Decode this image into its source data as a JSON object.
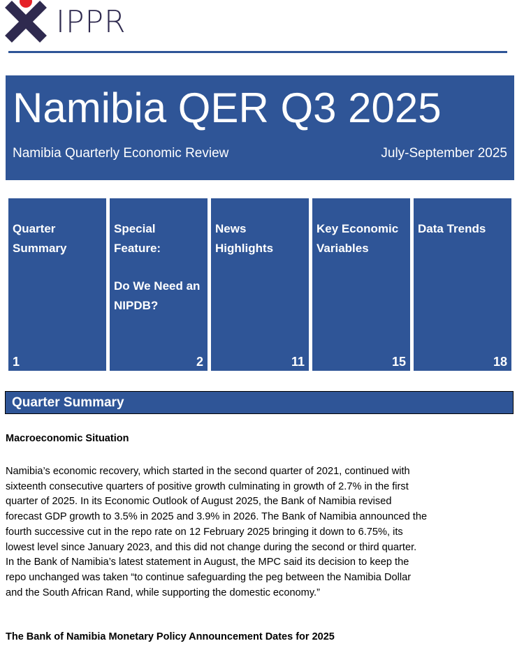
{
  "logo": {
    "text": "IPPR"
  },
  "banner": {
    "title": "Namibia QER Q3 2025",
    "subtitle": "Namibia Quarterly Economic Review",
    "period": "July-September 2025"
  },
  "contents": [
    {
      "label": "Quarter Summary",
      "page": "1"
    },
    {
      "label": "Special Feature:",
      "label2": "Do We Need an NIPDB?",
      "page": "2"
    },
    {
      "label": "News Highlights",
      "page": "11"
    },
    {
      "label": "Key Economic Variables",
      "page": "15"
    },
    {
      "label": "Data Trends",
      "page": "18"
    }
  ],
  "section": {
    "heading": "Quarter Summary"
  },
  "macro": {
    "heading": "Macroeconomic Situation",
    "lines": [
      "Namibia’s economic recovery, which started in the second quarter of 2021, continued with",
      "sixteenth consecutive quarters of positive growth culminating in growth of 2.7% in the first",
      "quarter of 2025. In its Economic Outlook of August 2025, the Bank of Namibia revised",
      "forecast GDP growth to 3.5% in 2025 and 3.9% in 2026. The Bank of Namibia announced the",
      "fourth successive cut in the repo rate on 12 February 2025 bringing it down to 6.75%, its",
      "lowest level since January 2023, and this did not change during the second or third quarter.",
      "In the Bank of Namibia’s latest statement in August, the MPC said its decision to keep the",
      "repo unchanged was taken “to continue safeguarding the peg between the Namibia Dollar",
      "and the South African Rand, while supporting the domestic economy.”"
    ]
  },
  "mpc": {
    "heading": "The Bank of Namibia Monetary Policy Announcement Dates for 2025"
  }
}
